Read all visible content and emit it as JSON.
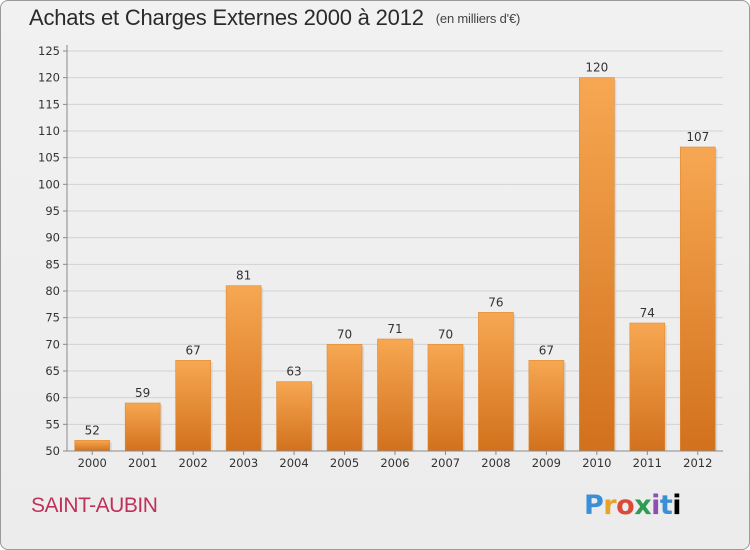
{
  "header": {
    "title": "Achats et Charges Externes 2000 à 2012",
    "subtitle": "(en milliers d'€)"
  },
  "footer": {
    "commune": "SAINT-AUBIN",
    "logo_text": "Proxiti"
  },
  "colors": {
    "bar_top": "#f7a752",
    "bar_bottom": "#d2711d",
    "commune": "#c0315a",
    "axis": "#8a8a8a",
    "grid": "#d2d2d2"
  },
  "chart_data": {
    "type": "bar",
    "categories": [
      "2000",
      "2001",
      "2002",
      "2003",
      "2004",
      "2005",
      "2006",
      "2007",
      "2008",
      "2009",
      "2010",
      "2011",
      "2012"
    ],
    "values": [
      52,
      59,
      67,
      81,
      63,
      70,
      71,
      70,
      76,
      67,
      120,
      74,
      107
    ],
    "data_labels": [
      "52",
      "59",
      "67",
      "81",
      "63",
      "70",
      "71",
      "70",
      "76",
      "67",
      "120",
      "74",
      "107"
    ],
    "ylim": [
      50,
      125
    ],
    "yticks": [
      "50",
      "55",
      "60",
      "65",
      "70",
      "75",
      "80",
      "85",
      "90",
      "95",
      "100",
      "105",
      "110",
      "115",
      "120",
      "125"
    ],
    "grid": true,
    "legend": "none"
  }
}
